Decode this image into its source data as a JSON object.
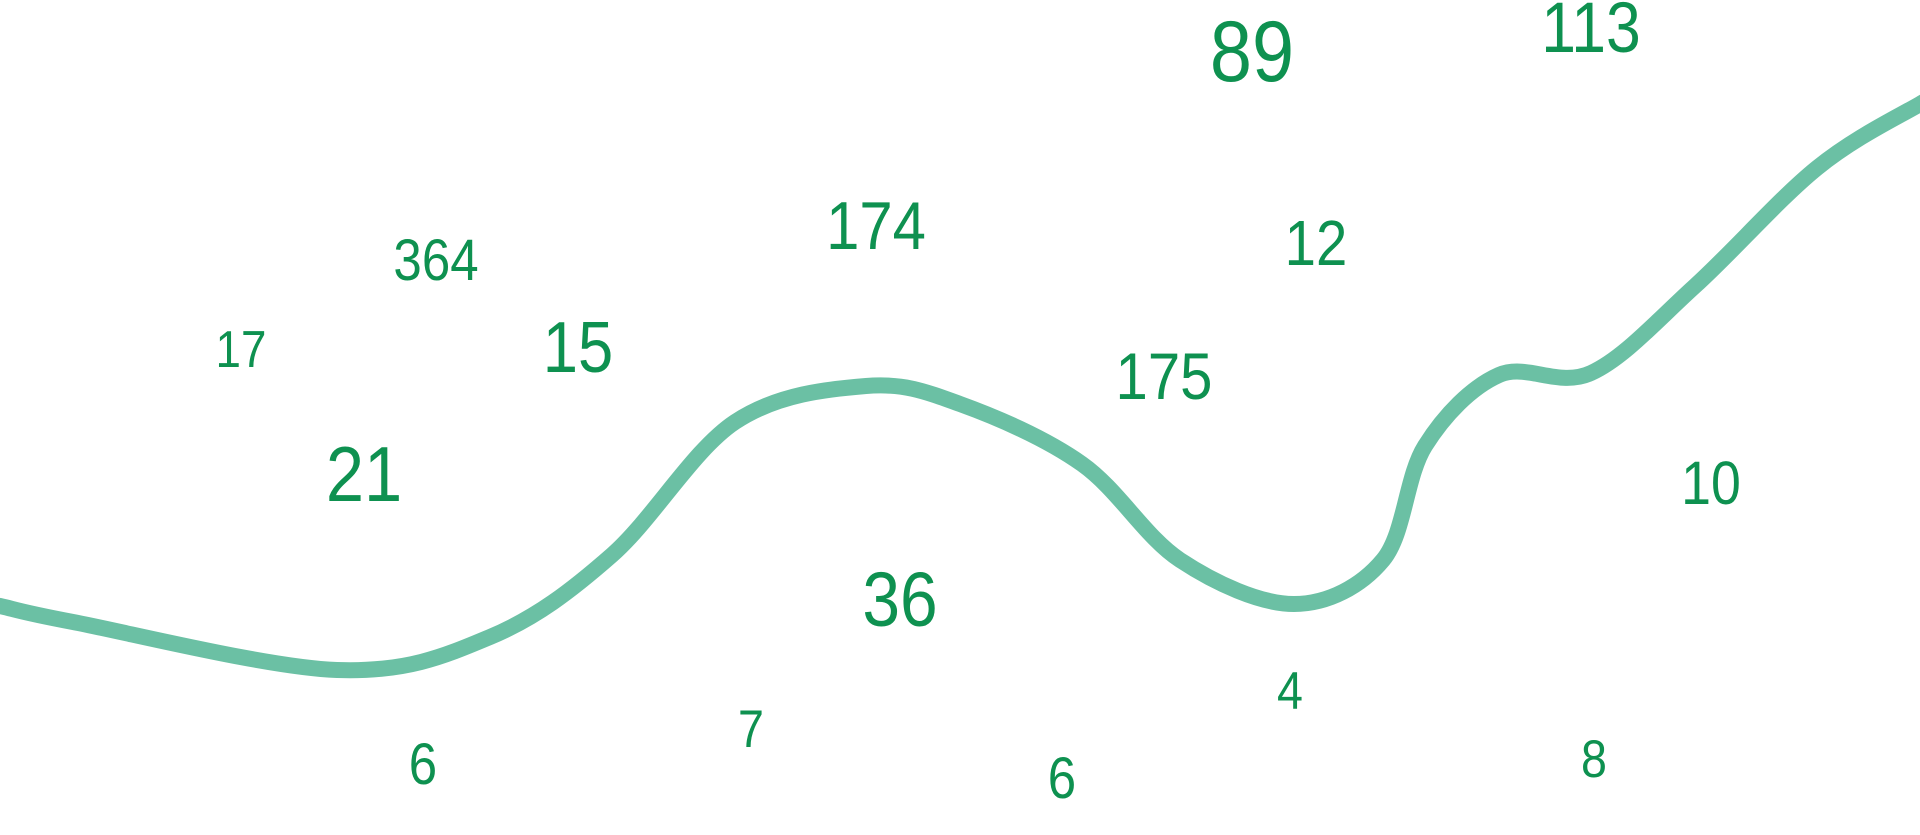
{
  "colors": {
    "number": "#0e9150",
    "curve": "#6bc0a4",
    "background": "#ffffff"
  },
  "numbers": [
    "364",
    "174",
    "17",
    "15",
    "21",
    "36",
    "89",
    "113",
    "12",
    "175",
    "10",
    "6",
    "7",
    "4",
    "6",
    "8"
  ]
}
